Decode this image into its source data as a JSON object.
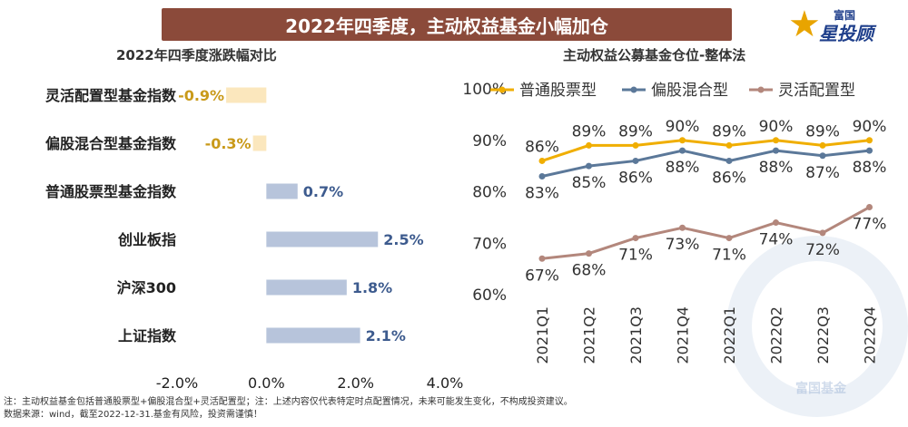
{
  "header": {
    "title": "2022年四季度，主动权益基金小幅加仓",
    "logo_top": "富国",
    "logo_main": "星投顾",
    "logo_star": "★"
  },
  "colors": {
    "banner": "#8b4a3a",
    "neg_bar": "#fbe7bd",
    "neg_label": "#c99a1a",
    "pos_bar": "#b7c4db",
    "pos_label": "#3d5b8e",
    "series1": "#f0ae00",
    "series2": "#5b7899",
    "series3": "#b3877c"
  },
  "watermark": {
    "text": "富国基金"
  },
  "notes": {
    "line1": "注：主动权益基金包括普通股票型+偏股混合型+灵活配置型；注：上述内容仅代表特定时点配置情况，未来可能发生变化，不构成投资建议。",
    "line2": "数据来源：wind，截至2022-12-31.基金有风险，投资需谨慎！"
  },
  "chart_data": [
    {
      "type": "bar",
      "orientation": "horizontal",
      "title": "2022年四季度涨跌幅对比",
      "categories": [
        "灵活配置型基金指数",
        "偏股混合型基金指数",
        "普通股票型基金指数",
        "创业板指",
        "沪深300",
        "上证指数"
      ],
      "values": [
        -0.9,
        -0.3,
        0.7,
        2.5,
        1.8,
        2.1
      ],
      "value_labels": [
        "-0.9%",
        "-0.3%",
        "0.7%",
        "2.5%",
        "1.8%",
        "2.1%"
      ],
      "xlim": [
        -2.0,
        4.0
      ],
      "xticks": [
        -2,
        0,
        2,
        4
      ],
      "xtick_labels": [
        "-2.0%",
        "0.0%",
        "2.0%",
        "4.0%"
      ],
      "grid": false
    },
    {
      "type": "line",
      "title": "主动权益公募基金仓位-整体法",
      "categories": [
        "2021Q1",
        "2021Q2",
        "2021Q3",
        "2021Q4",
        "2022Q1",
        "2022Q2",
        "2022Q3",
        "2022Q4"
      ],
      "series": [
        {
          "name": "普通股票型",
          "values": [
            86,
            89,
            89,
            90,
            89,
            90,
            89,
            90
          ],
          "labels": [
            "86%",
            "89%",
            "89%",
            "90%",
            "89%",
            "90%",
            "89%",
            "90%"
          ]
        },
        {
          "name": "偏股混合型",
          "values": [
            83,
            85,
            86,
            88,
            86,
            88,
            87,
            88
          ],
          "labels": [
            "83%",
            "85%",
            "86%",
            "88%",
            "86%",
            "88%",
            "87%",
            "88%"
          ]
        },
        {
          "name": "灵活配置型",
          "values": [
            67,
            68,
            71,
            73,
            71,
            74,
            72,
            77
          ],
          "labels": [
            "67%",
            "68%",
            "71%",
            "73%",
            "71%",
            "74%",
            "72%",
            "77%"
          ]
        }
      ],
      "ylim": [
        60,
        100
      ],
      "yticks": [
        60,
        70,
        80,
        90,
        100
      ],
      "ytick_labels": [
        "60%",
        "70%",
        "80%",
        "90%",
        "100%"
      ],
      "legend": "top",
      "grid": false
    }
  ]
}
